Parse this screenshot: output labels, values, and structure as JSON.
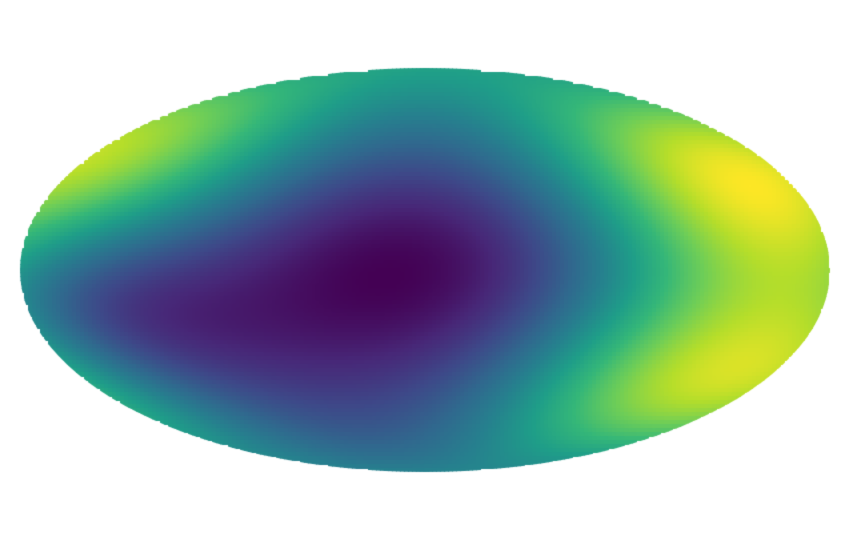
{
  "chart_data": {
    "type": "heatmap",
    "projection": "mollweide",
    "colormap": "viridis",
    "colormap_stops": [
      "#440154",
      "#482878",
      "#3e4989",
      "#31688e",
      "#26828e",
      "#1f9e89",
      "#35b779",
      "#6ece58",
      "#b5de2b",
      "#fde725"
    ],
    "title": "",
    "colorbar": false,
    "grid": false,
    "axes_visible": false,
    "value_range": [
      0,
      1
    ],
    "field_components": [
      {
        "ra_deg": 4,
        "dec_deg": 0,
        "amplitude": -0.9,
        "width_deg": 40
      },
      {
        "ra_deg": -85,
        "dec_deg": 35,
        "amplitude": 1.0,
        "width_deg": 30
      },
      {
        "ra_deg": -75,
        "dec_deg": -45,
        "amplitude": 0.9,
        "width_deg": 30
      },
      {
        "ra_deg": 95,
        "dec_deg": 45,
        "amplitude": 0.85,
        "width_deg": 32
      },
      {
        "ra_deg": 115,
        "dec_deg": -35,
        "amplitude": 1.0,
        "width_deg": 30
      },
      {
        "ra_deg": -172,
        "dec_deg": 2,
        "amplitude": -0.9,
        "width_deg": 40
      },
      {
        "ra_deg": 78,
        "dec_deg": -18,
        "amplitude": -0.8,
        "width_deg": 26
      },
      {
        "ra_deg": -130,
        "dec_deg": 18,
        "amplitude": -0.6,
        "width_deg": 22
      },
      {
        "ra_deg": 0,
        "dec_deg": -80,
        "amplitude": -0.5,
        "width_deg": 28
      },
      {
        "ra_deg": 0,
        "dec_deg": 82,
        "amplitude": -0.3,
        "width_deg": 28
      }
    ]
  }
}
